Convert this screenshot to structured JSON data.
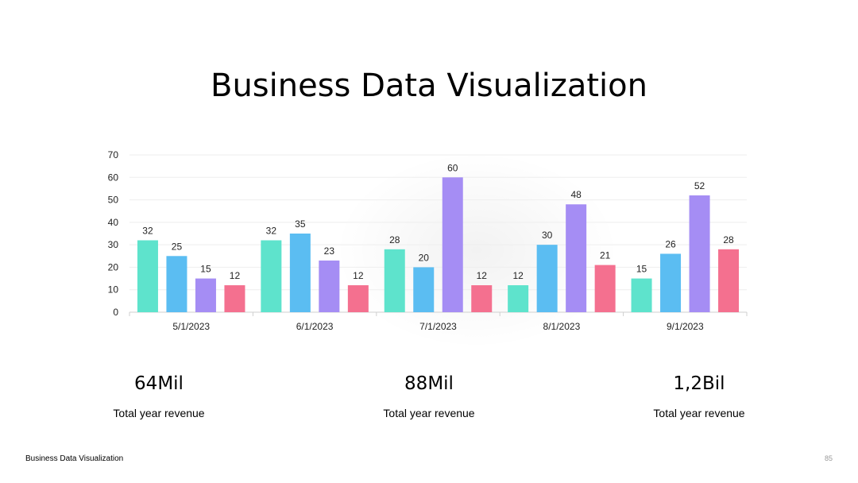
{
  "slide": {
    "title": "Business Data Visualization",
    "footer": "Business Data Visualization",
    "page_number": "85"
  },
  "chart_data": {
    "type": "bar",
    "categories": [
      "5/1/2023",
      "6/1/2023",
      "7/1/2023",
      "8/1/2023",
      "9/1/2023"
    ],
    "series": [
      {
        "color": "#5EE3CC",
        "values": [
          32,
          32,
          28,
          12,
          15
        ]
      },
      {
        "color": "#5BBDF2",
        "values": [
          25,
          35,
          20,
          30,
          26
        ]
      },
      {
        "color": "#A58DF4",
        "values": [
          15,
          23,
          60,
          48,
          52
        ]
      },
      {
        "color": "#F4708F",
        "values": [
          12,
          12,
          12,
          21,
          28
        ]
      }
    ],
    "ylim": [
      0,
      70
    ],
    "yticks": [
      0,
      10,
      20,
      30,
      40,
      50,
      60,
      70
    ],
    "grid": true,
    "data_labels": true
  },
  "stats": [
    {
      "value": "64Mil",
      "caption": "Total year revenue"
    },
    {
      "value": "88Mil",
      "caption": "Total year revenue"
    },
    {
      "value": "1,2Bil",
      "caption": "Total year revenue"
    }
  ]
}
